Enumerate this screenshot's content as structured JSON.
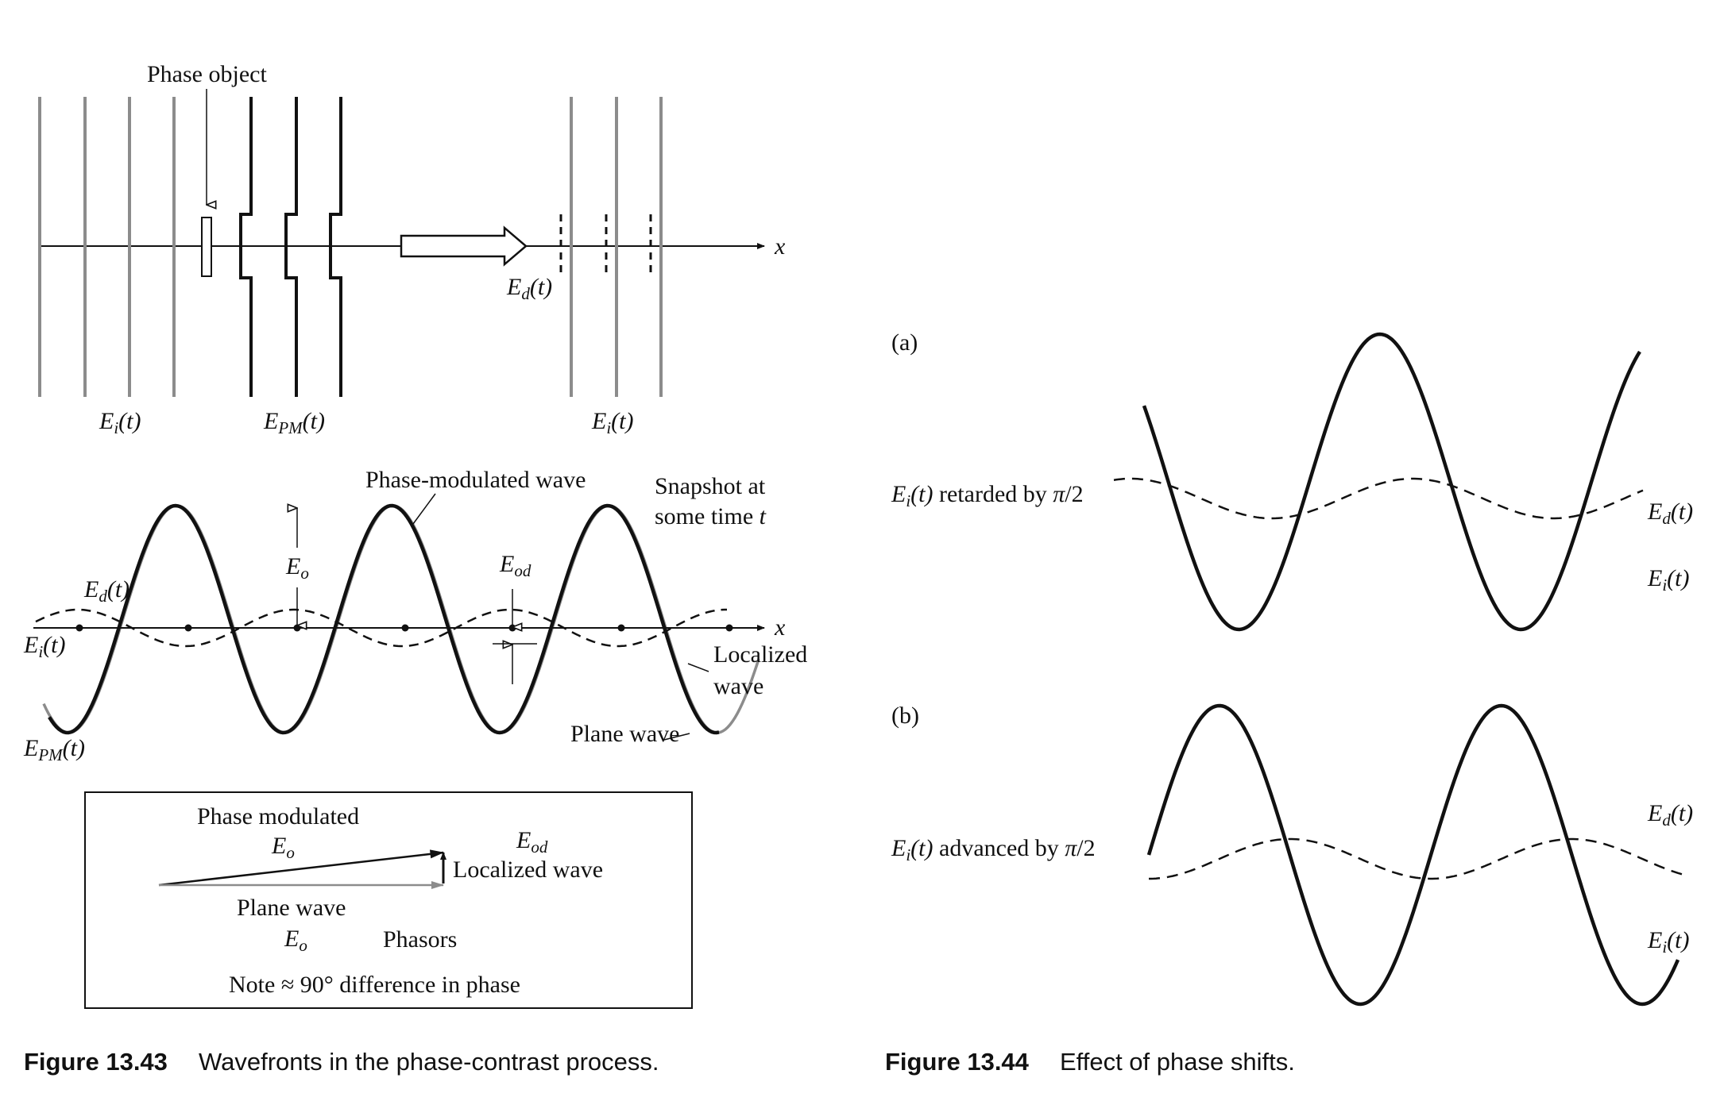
{
  "figure_13_43": {
    "caption_number": "Figure 13.43",
    "caption_text": "Wavefronts in the phase-contrast process.",
    "top_panel": {
      "phase_object_label": "Phase object",
      "x_axis_label": "x",
      "e_i_left_label": "Ei(t)",
      "e_pm_label": "EPM(t)",
      "e_i_right_label": "Ei(t)",
      "e_d_label": "Ed(t)"
    },
    "middle_panel": {
      "phase_modulated_wave_label": "Phase-modulated wave",
      "snapshot_line1": "Snapshot at",
      "snapshot_line2": "some time t",
      "e_o_label": "Eo",
      "e_od_label": "Eod",
      "e_d_label": "Ed(t)",
      "e_i_label": "Ei(t)",
      "e_pm_label": "EPM(t)",
      "x_axis_label": "x",
      "localized_wave_line1": "Localized",
      "localized_wave_line2": "wave",
      "plane_wave_label": "Plane wave"
    },
    "phasor_box": {
      "phase_modulated_label": "Phase modulated",
      "e_o_top_label": "Eo",
      "e_od_label": "Eod",
      "localized_wave_label": "Localized wave",
      "plane_wave_label": "Plane wave",
      "e_o_bottom_label": "Eo",
      "phasors_label": "Phasors",
      "note_label": "Note ≈ 90° difference in phase"
    }
  },
  "figure_13_44": {
    "caption_number": "Figure 13.44",
    "caption_text": "Effect of phase shifts.",
    "panel_a": {
      "tag": "(a)",
      "left_label_e": "Ei(t)",
      "left_label_rest": " retarded by π/2",
      "e_d_label": "Ed(t)",
      "e_i_label": "Ei(t)"
    },
    "panel_b": {
      "tag": "(b)",
      "left_label_e": "Ei(t)",
      "left_label_rest": " advanced by π/2",
      "e_d_label": "Ed(t)",
      "e_i_label": "Ei(t)"
    }
  },
  "colors": {
    "ink": "#111111",
    "gray_line": "#8c8c8c"
  }
}
